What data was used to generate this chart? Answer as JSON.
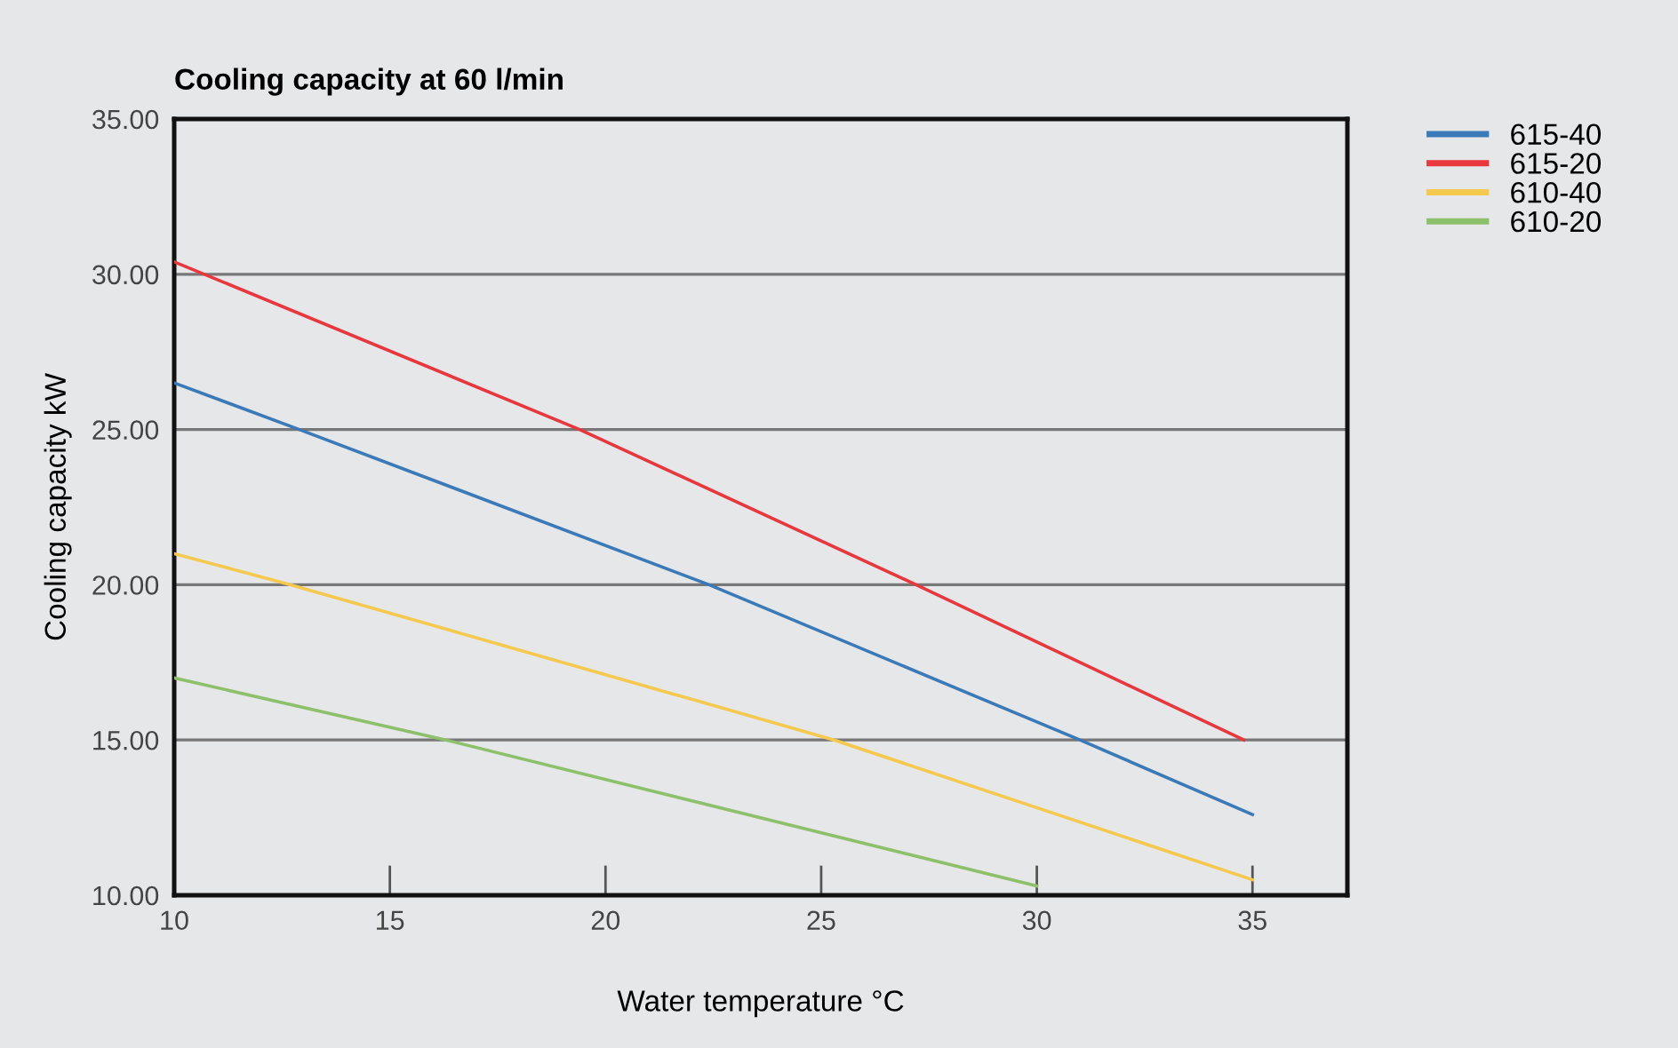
{
  "chart_data": {
    "type": "line",
    "title": "Cooling capacity at 60 l/min",
    "xlabel": "Water temperature °C",
    "ylabel": "Cooling capacity kW",
    "xlim": [
      10,
      37.2
    ],
    "xticks": [
      10,
      15,
      20,
      25,
      30,
      35
    ],
    "ylim": [
      10,
      35
    ],
    "yticks": [
      {
        "value": 10,
        "label": "10.00"
      },
      {
        "value": 15,
        "label": "15.00"
      },
      {
        "value": 20,
        "label": "20.00"
      },
      {
        "value": 25,
        "label": "25.00"
      },
      {
        "value": 30,
        "label": "30.00"
      },
      {
        "value": 35,
        "label": "35.00"
      }
    ],
    "grid": "y",
    "legend": "top right",
    "marker": "none",
    "line_style": "solid",
    "series": [
      {
        "name": "615-40",
        "color": "#3b7ab8",
        "x": [
          10,
          12.9,
          22.4,
          31,
          35
        ],
        "values": [
          26.5,
          25,
          20,
          15,
          12.6
        ]
      },
      {
        "name": "615-20",
        "color": "#e8383d",
        "x": [
          10,
          19.4,
          27.2,
          34.8
        ],
        "values": [
          30.4,
          25,
          20,
          15
        ]
      },
      {
        "name": "610-40",
        "color": "#f5c94e",
        "x": [
          10,
          12.7,
          25.3,
          35
        ],
        "values": [
          21,
          20,
          15,
          10.5
        ]
      },
      {
        "name": "610-20",
        "color": "#8dc06a",
        "x": [
          10,
          16.3,
          30
        ],
        "values": [
          17,
          15,
          10.3
        ]
      }
    ]
  }
}
